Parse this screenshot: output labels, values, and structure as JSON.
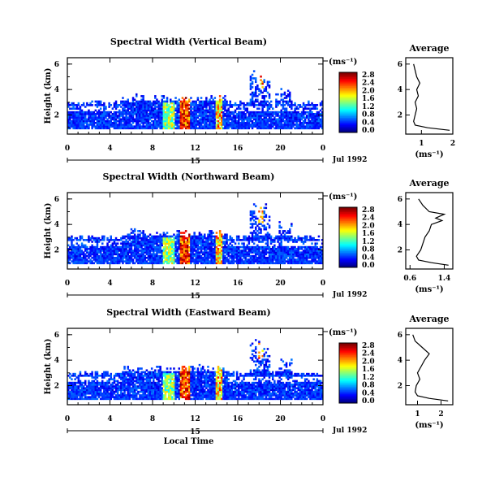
{
  "chart_data": [
    {
      "type": "heatmap",
      "title": "Spectral Width (Vertical Beam)",
      "ylabel": "Height (km)",
      "xlabel": "",
      "x_ticks": [
        "0",
        "4",
        "8",
        "12",
        "16",
        "20",
        "0"
      ],
      "day_label": "15",
      "month_label": "Jul 1992",
      "y_ticks": [
        "2",
        "4",
        "6"
      ],
      "xlim": [
        0,
        24
      ],
      "ylim": [
        0.5,
        6.5
      ],
      "colorbar": {
        "unit": "(ms⁻¹)",
        "ticks": [
          "0.0",
          "0.4",
          "0.8",
          "1.2",
          "1.6",
          "2.0",
          "2.4",
          "2.8"
        ],
        "max": 2.8
      },
      "average": {
        "title": "Average",
        "xlabel": "(ms⁻¹)",
        "x_ticks": [
          "1",
          "2"
        ],
        "xlim": [
          0.5,
          2.0
        ],
        "height": [
          0.8,
          1.0,
          1.2,
          1.5,
          2.0,
          2.5,
          3.0,
          3.5,
          4.0,
          4.5,
          5.0,
          5.5,
          6.0
        ],
        "value": [
          1.9,
          1.2,
          0.8,
          0.75,
          0.8,
          0.85,
          0.8,
          0.9,
          0.85,
          0.95,
          0.85,
          0.8,
          0.75
        ]
      }
    },
    {
      "type": "heatmap",
      "title": "Spectral Width (Northward Beam)",
      "ylabel": "Height (km)",
      "xlabel": "",
      "x_ticks": [
        "0",
        "4",
        "8",
        "12",
        "16",
        "20",
        "0"
      ],
      "day_label": "15",
      "month_label": "Jul 1992",
      "y_ticks": [
        "2",
        "4",
        "6"
      ],
      "xlim": [
        0,
        24
      ],
      "ylim": [
        0.5,
        6.5
      ],
      "colorbar": {
        "unit": "(ms⁻¹)",
        "ticks": [
          "0.0",
          "0.4",
          "0.8",
          "1.2",
          "1.6",
          "2.0",
          "2.4",
          "2.8"
        ],
        "max": 2.8
      },
      "average": {
        "title": "Average",
        "xlabel": "(ms⁻¹)",
        "x_ticks": [
          "0.6",
          "1.4"
        ],
        "xlim": [
          0.5,
          1.6
        ],
        "height": [
          0.8,
          1.0,
          1.2,
          1.5,
          2.0,
          2.5,
          3.0,
          3.5,
          4.0,
          4.3,
          4.5,
          4.8,
          5.0,
          5.5,
          6.0
        ],
        "value": [
          1.5,
          1.1,
          0.8,
          0.75,
          0.85,
          0.9,
          0.95,
          1.05,
          1.1,
          1.35,
          1.2,
          1.4,
          1.05,
          0.9,
          0.8
        ]
      }
    },
    {
      "type": "heatmap",
      "title": "Spectral Width (Eastward Beam)",
      "ylabel": "Height (km)",
      "xlabel": "Local Time",
      "x_ticks": [
        "0",
        "4",
        "8",
        "12",
        "16",
        "20",
        "0"
      ],
      "day_label": "15",
      "month_label": "Jul 1992",
      "y_ticks": [
        "2",
        "4",
        "6"
      ],
      "xlim": [
        0,
        24
      ],
      "ylim": [
        0.5,
        6.5
      ],
      "colorbar": {
        "unit": "(ms⁻¹)",
        "ticks": [
          "0.0",
          "0.4",
          "0.8",
          "1.2",
          "1.6",
          "2.0",
          "2.4",
          "2.8"
        ],
        "max": 2.8
      },
      "average": {
        "title": "Average",
        "xlabel": "(ms⁻¹)",
        "x_ticks": [
          "1",
          "2"
        ],
        "xlim": [
          0.5,
          2.5
        ],
        "height": [
          0.8,
          1.0,
          1.2,
          1.5,
          2.0,
          2.5,
          3.0,
          3.5,
          4.0,
          4.5,
          5.0,
          5.5,
          6.0
        ],
        "value": [
          2.3,
          1.5,
          1.0,
          0.9,
          0.95,
          1.1,
          1.0,
          1.15,
          1.3,
          1.5,
          1.2,
          0.9,
          0.8
        ]
      }
    }
  ]
}
